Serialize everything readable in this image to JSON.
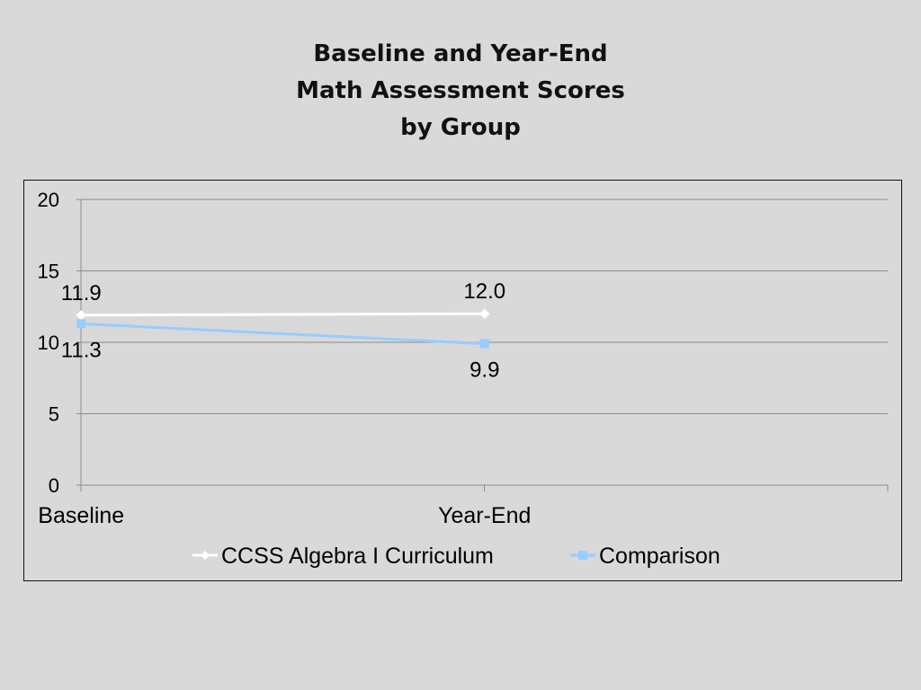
{
  "slide": {
    "title_lines": [
      "Baseline and Year-End",
      "Math Assessment Scores",
      "by Group"
    ]
  },
  "chart_data": {
    "type": "line",
    "categories": [
      "Baseline",
      "Year-End"
    ],
    "series": [
      {
        "name": "CCSS Algebra I Curriculum",
        "values": [
          11.9,
          12.0
        ],
        "labels": [
          "11.9",
          "12.0"
        ],
        "color": "#ffffff",
        "marker": "diamond"
      },
      {
        "name": "Comparison",
        "values": [
          11.3,
          9.9
        ],
        "labels": [
          "11.3",
          "9.9"
        ],
        "color": "#99ccff",
        "marker": "square"
      }
    ],
    "ylim": [
      0,
      20
    ],
    "yticks": [
      0,
      5,
      10,
      15,
      20
    ],
    "grid": true,
    "legend": "bottom",
    "xlabel": "",
    "ylabel": ""
  }
}
